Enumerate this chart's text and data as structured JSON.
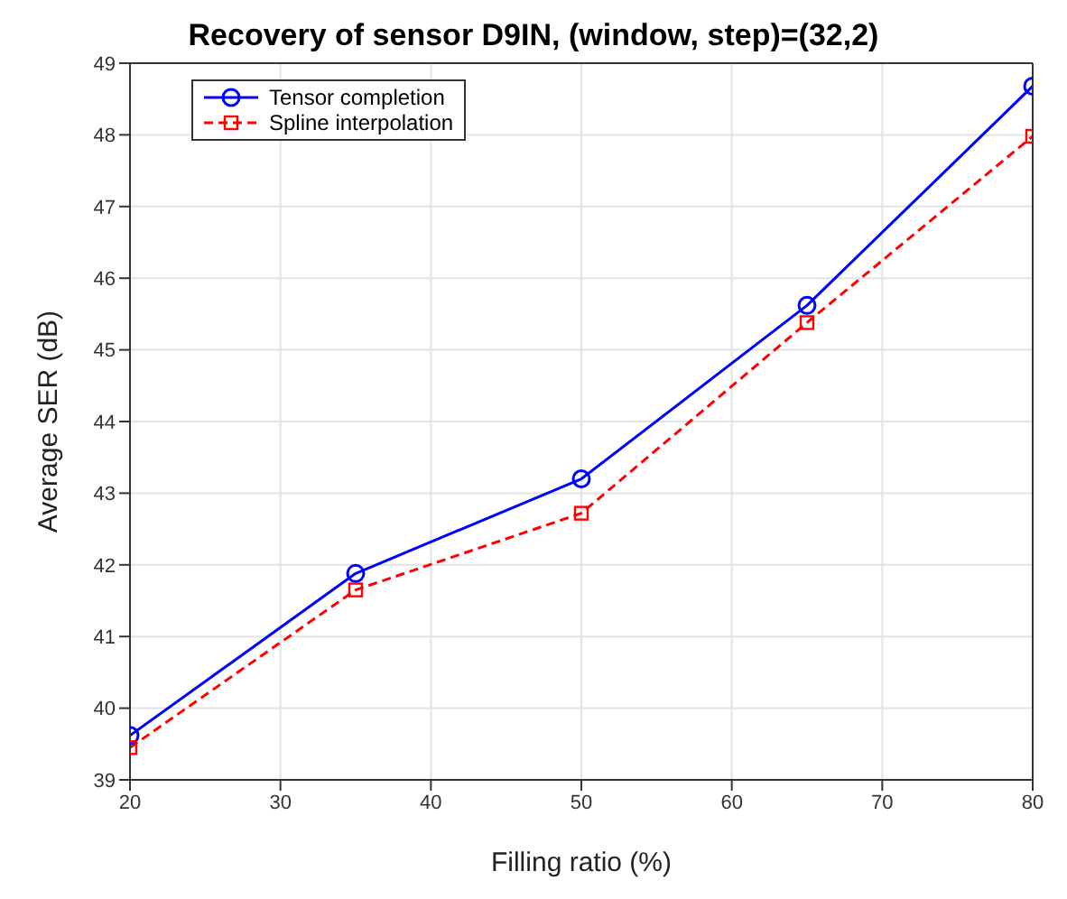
{
  "chart_data": {
    "type": "line",
    "title": "Recovery of sensor D9IN, (window, step)=(32,2)",
    "xlabel": "Filling ratio (%)",
    "ylabel": "Average SER (dB)",
    "x": [
      20,
      35,
      50,
      65,
      80
    ],
    "series": [
      {
        "name": "Tensor completion",
        "color": "#0000ff",
        "values": [
          39.62,
          41.88,
          43.2,
          45.62,
          48.68
        ],
        "marker": "circle",
        "line_style": "solid"
      },
      {
        "name": "Spline interpolation",
        "color": "#ff0000",
        "values": [
          39.45,
          41.65,
          42.72,
          45.38,
          47.98
        ],
        "marker": "square",
        "line_style": "dashed"
      }
    ],
    "xlim": [
      20,
      80
    ],
    "xticks": [
      20,
      30,
      40,
      50,
      60,
      70,
      80
    ],
    "ylim": [
      39,
      49
    ],
    "yticks": [
      39,
      40,
      41,
      42,
      43,
      44,
      45,
      46,
      47,
      48,
      49
    ],
    "grid": true,
    "legend": "top left"
  }
}
